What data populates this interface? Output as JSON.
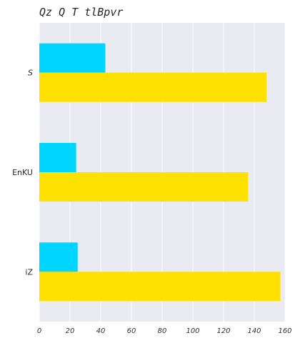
{
  "chart_data": {
    "type": "bar",
    "orientation": "horizontal",
    "title": "Qz Q T tlBpvr",
    "xlabel": "",
    "ylabel": "",
    "categories": [
      "S",
      "EnKU",
      "iZ"
    ],
    "series": [
      {
        "color": "#00d5ff",
        "values": [
          43,
          24,
          25
        ]
      },
      {
        "color": "#ffe100",
        "values": [
          148,
          136,
          157
        ]
      }
    ],
    "xlim": [
      0,
      160
    ],
    "xticks": [
      0,
      20,
      40,
      60,
      80,
      100,
      120,
      140,
      160
    ],
    "grid": true,
    "legend": "none",
    "plot_background": "#eaeaf2"
  }
}
